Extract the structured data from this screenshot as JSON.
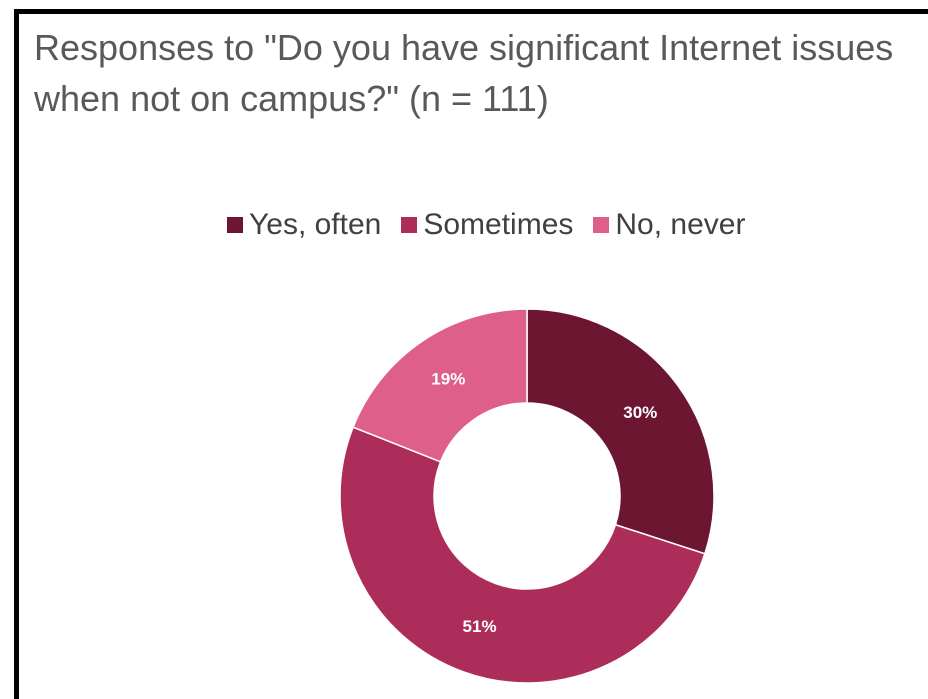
{
  "chart_data": {
    "type": "pie",
    "variant": "donut",
    "title": "Responses to \"Do you have significant Internet issues when not on campus?\" (n = 111)",
    "legend_position": "top",
    "categories": [
      "Yes, often",
      "Sometimes",
      "No, never"
    ],
    "values": [
      30,
      51,
      19
    ],
    "value_labels": [
      "30%",
      "51%",
      "19%"
    ],
    "colors": [
      "#6d1632",
      "#ad2d5a",
      "#df5f8b"
    ],
    "start_angle_deg": 0,
    "direction": "clockwise"
  }
}
